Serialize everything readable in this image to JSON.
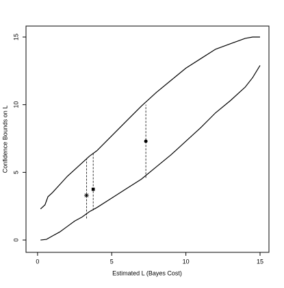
{
  "chart_data": {
    "type": "line",
    "xlabel": "Estimated L (Bayes Cost)",
    "ylabel": "Confidence Bounds on L",
    "xlim": [
      -0.78,
      15.6
    ],
    "ylim": [
      -0.91,
      15.81
    ],
    "xticks": [
      0,
      5,
      10,
      15
    ],
    "yticks": [
      0,
      5,
      10,
      15
    ],
    "series": [
      {
        "color": "#000000",
        "x": [
          0.2,
          0.5,
          0.7,
          1,
          1.5,
          2,
          2.5,
          3,
          3.5,
          4,
          5,
          6,
          7,
          8,
          9,
          10,
          11,
          12,
          13,
          14,
          14.5,
          15
        ],
        "values": [
          2.3,
          2.6,
          3.2,
          3.5,
          4.1,
          4.7,
          5.2,
          5.7,
          6.2,
          6.6,
          7.7,
          8.8,
          9.9,
          10.9,
          11.8,
          12.7,
          13.4,
          14.1,
          14.5,
          14.9,
          15,
          15
        ]
      },
      {
        "color": "#000000",
        "x": [
          0.2,
          0.6,
          1,
          1.5,
          2,
          2.5,
          3,
          3.5,
          4,
          5,
          6,
          7,
          8,
          9,
          10,
          11,
          12,
          13,
          14,
          14.5,
          15
        ],
        "values": [
          0,
          0.05,
          0.3,
          0.6,
          1.0,
          1.4,
          1.7,
          2.1,
          2.4,
          3.1,
          3.8,
          4.5,
          5.4,
          6.3,
          7.3,
          8.3,
          9.4,
          10.3,
          11.3,
          12.0,
          12.9
        ]
      }
    ],
    "intervals": {
      "x": [
        3.3,
        3.75,
        7.3
      ],
      "lower": [
        1.6,
        2.2,
        4.6
      ],
      "upper": [
        6.0,
        6.4,
        10.0
      ]
    },
    "points": {
      "x": [
        3.3,
        3.75,
        7.3
      ],
      "values": [
        3.3,
        3.75,
        7.3
      ],
      "markers": [
        "star",
        "square",
        "circle"
      ]
    }
  }
}
